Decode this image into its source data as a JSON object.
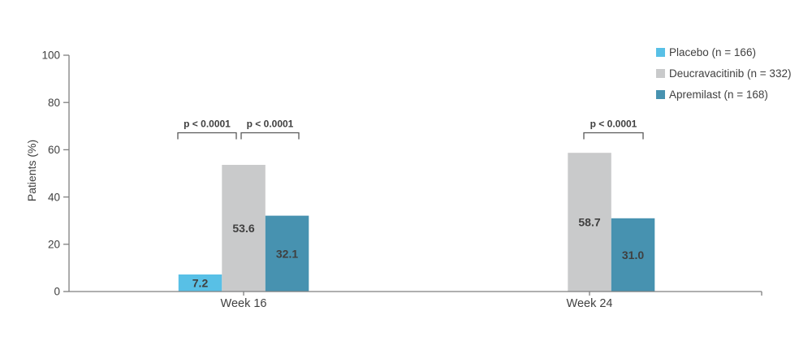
{
  "chart_data": {
    "type": "bar",
    "title": "",
    "xlabel": "",
    "ylabel": "Patients (%)",
    "ylim": [
      0,
      100
    ],
    "yticks": [
      0,
      20,
      40,
      60,
      80,
      100
    ],
    "grid": false,
    "legend_position": "top-right",
    "categories": [
      "Week 16",
      "Week 24"
    ],
    "series": [
      {
        "name": "Placebo (n = 166)",
        "short_name": "Placebo",
        "color": "#58C0E6",
        "values": [
          7.2,
          null
        ]
      },
      {
        "name": "Deucravacitinib (n = 332)",
        "short_name": "Deucravacitinib",
        "color": "#C9CACB",
        "values": [
          53.6,
          58.7
        ]
      },
      {
        "name": "Apremilast (n = 168)",
        "short_name": "Apremilast",
        "color": "#4792B0",
        "values": [
          32.1,
          31.0
        ]
      }
    ],
    "annotations": [
      {
        "label": "p < 0.0001",
        "category": "Week 16",
        "between": [
          "Placebo",
          "Deucravacitinib"
        ]
      },
      {
        "label": "p < 0.0001",
        "category": "Week 16",
        "between": [
          "Deucravacitinib",
          "Apremilast"
        ]
      },
      {
        "label": "p < 0.0001",
        "category": "Week 24",
        "between": [
          "Deucravacitinib",
          "Apremilast"
        ]
      }
    ]
  },
  "colors": {
    "axis": "#7F7F7F",
    "bracket": "#595959",
    "text": "#404040",
    "p_text": "#262626",
    "value_label": "#FFFFFF"
  }
}
